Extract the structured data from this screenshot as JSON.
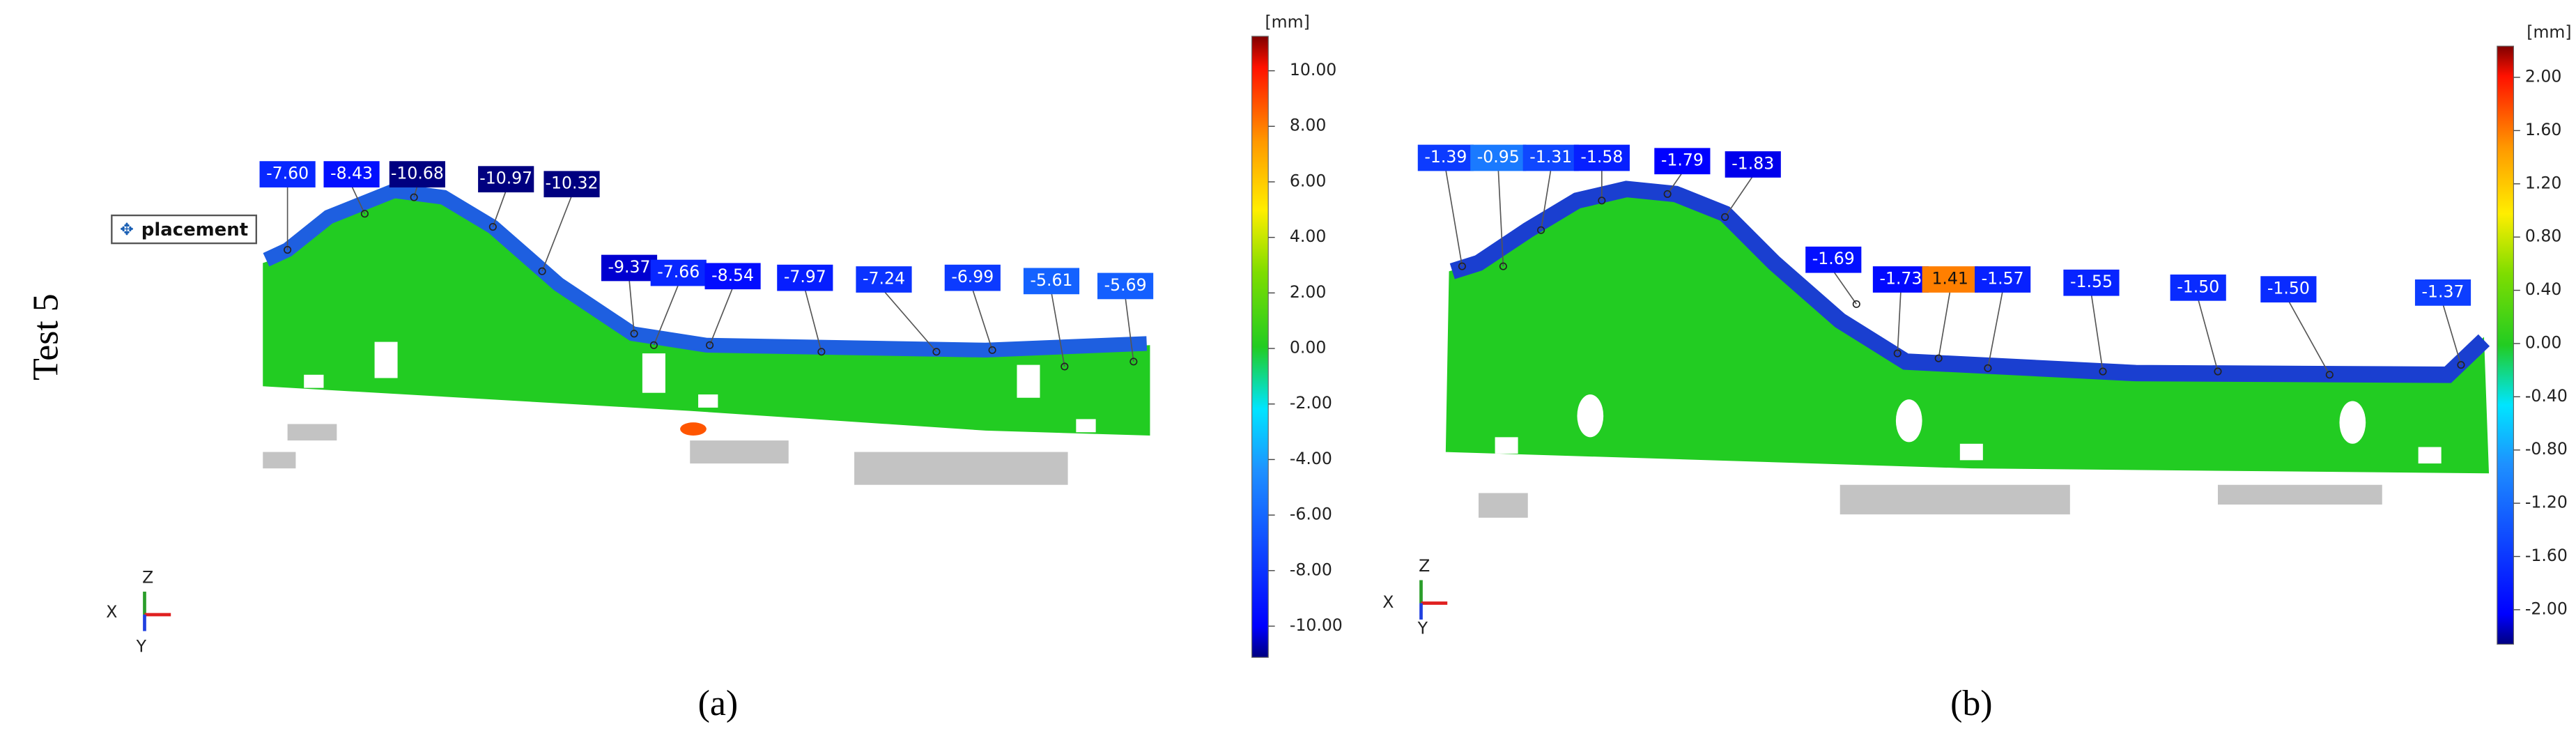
{
  "row_label": "Test 5",
  "panels": [
    {
      "caption": "(a)",
      "unit": "[mm]",
      "tag": "placement",
      "axes": [
        "Z",
        "X",
        "Y"
      ],
      "scale": [
        "10.00",
        "8.00",
        "6.00",
        "4.00",
        "2.00",
        "0.00",
        "-2.00",
        "-4.00",
        "-6.00",
        "-8.00",
        "-10.00"
      ],
      "annotations": [
        "-7.60",
        "-8.43",
        "-10.68",
        "-10.97",
        "-10.32",
        "-9.37",
        "-7.66",
        "-8.54",
        "-7.97",
        "-7.24",
        "-6.99",
        "-5.61",
        "-5.69"
      ]
    },
    {
      "caption": "(b)",
      "unit": "[mm]",
      "axes": [
        "Z",
        "X",
        "Y"
      ],
      "scale": [
        "2.00",
        "1.60",
        "1.20",
        "0.80",
        "0.40",
        "0.00",
        "-0.40",
        "-0.80",
        "-1.20",
        "-1.60",
        "-2.00"
      ],
      "annotations": [
        "-1.39",
        "-0.95",
        "-1.31",
        "-1.58",
        "-1.79",
        "-1.83",
        "-1.69",
        "-1.73",
        "1.41",
        "-1.57",
        "-1.55",
        "-1.50",
        "-1.50",
        "-1.37"
      ]
    }
  ]
}
